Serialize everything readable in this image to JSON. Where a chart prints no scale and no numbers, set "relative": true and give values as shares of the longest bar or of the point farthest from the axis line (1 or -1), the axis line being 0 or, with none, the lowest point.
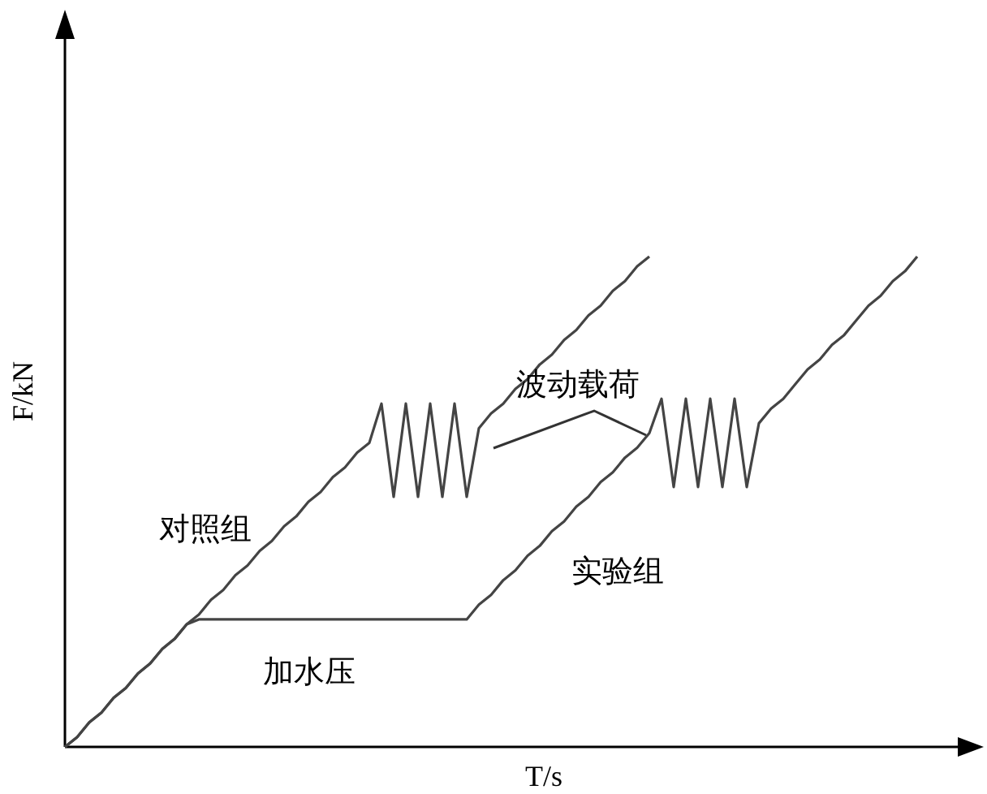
{
  "chart_data": {
    "type": "line",
    "relative": true,
    "xlabel": "T/s",
    "ylabel": "F/kN",
    "line_style": "solid",
    "categories": [
      null,
      null,
      null,
      null,
      null,
      null,
      null,
      null,
      null,
      null,
      null,
      null,
      null,
      null,
      null,
      null,
      null,
      null,
      null,
      null,
      null,
      null,
      null,
      null,
      null,
      null,
      null,
      null,
      null,
      null,
      null,
      null,
      null,
      null,
      null,
      null,
      null,
      null,
      null,
      null,
      null,
      null,
      null,
      null,
      null,
      null,
      null,
      null,
      null,
      null,
      null,
      null,
      null,
      null,
      null,
      null,
      null,
      null,
      null,
      null,
      null,
      null,
      null,
      null,
      null,
      null,
      null,
      null,
      null,
      null,
      null
    ],
    "series": [
      {
        "name": "对照组",
        "color": "#444444",
        "values": [
          0,
          0.02,
          0.05,
          0.07,
          0.1,
          0.12,
          0.15,
          0.17,
          0.2,
          0.22,
          0.25,
          0.27,
          0.3,
          0.32,
          0.35,
          0.37,
          0.4,
          0.42,
          0.45,
          0.47,
          0.5,
          0.52,
          0.55,
          0.57,
          0.6,
          0.62,
          0.7,
          0.51,
          0.7,
          0.51,
          0.7,
          0.51,
          0.7,
          0.51,
          0.65,
          0.68,
          0.7,
          0.73,
          0.75,
          0.78,
          0.8,
          0.83,
          0.85,
          0.88,
          0.9,
          0.93,
          0.95,
          0.98,
          1,
          null,
          null,
          null,
          null,
          null,
          null,
          null,
          null,
          null,
          null,
          null,
          null,
          null,
          null,
          null,
          null,
          null,
          null,
          null,
          null,
          null,
          null
        ]
      },
      {
        "name": "实验组",
        "color": "#444444",
        "values": [
          0,
          0.02,
          0.05,
          0.07,
          0.1,
          0.12,
          0.15,
          0.17,
          0.2,
          0.22,
          0.25,
          0.26,
          0.26,
          0.26,
          0.26,
          0.26,
          0.26,
          0.26,
          0.26,
          0.26,
          0.26,
          0.26,
          0.26,
          0.26,
          0.26,
          0.26,
          0.26,
          0.26,
          0.26,
          0.26,
          0.26,
          0.26,
          0.26,
          0.26,
          0.29,
          0.31,
          0.34,
          0.36,
          0.39,
          0.41,
          0.44,
          0.46,
          0.49,
          0.51,
          0.54,
          0.56,
          0.59,
          0.61,
          0.64,
          0.71,
          0.53,
          0.71,
          0.53,
          0.71,
          0.53,
          0.71,
          0.53,
          0.66,
          0.69,
          0.71,
          0.74,
          0.77,
          0.79,
          0.82,
          0.84,
          0.87,
          0.9,
          0.92,
          0.95,
          0.97,
          1
        ]
      }
    ],
    "annotations": [
      "加水压",
      "波动载荷"
    ]
  }
}
